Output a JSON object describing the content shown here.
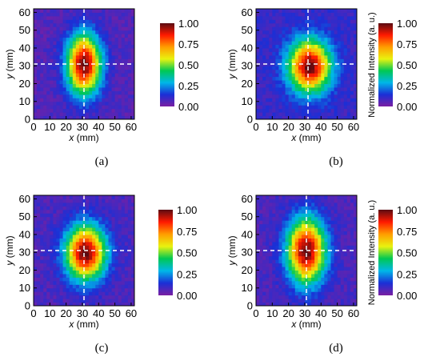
{
  "chart_data": [
    {
      "type": "heatmap",
      "panel_label": "(a)",
      "xlabel": "x (mm)",
      "ylabel": "y (mm)",
      "xlim": [
        0,
        62
      ],
      "ylim": [
        0,
        62
      ],
      "xticks": [
        "0",
        "10",
        "20",
        "30",
        "40",
        "50",
        "60"
      ],
      "yticks": [
        "0",
        "10",
        "20",
        "30",
        "40",
        "50",
        "60"
      ],
      "crosshair": {
        "x": 31,
        "y": 31
      },
      "beam": {
        "center_x": 31,
        "center_y": 31,
        "sigma_x": 9.0,
        "sigma_y": 14.5,
        "peak": 1.0,
        "background": 0.06
      },
      "colorbar": {
        "range": [
          0.0,
          1.0
        ],
        "ticks": [
          "0.00",
          "0.25",
          "0.50",
          "0.75",
          "1.00"
        ],
        "label": ""
      }
    },
    {
      "type": "heatmap",
      "panel_label": "(b)",
      "xlabel": "x (mm)",
      "ylabel": "y (mm)",
      "xlim": [
        0,
        62
      ],
      "ylim": [
        0,
        62
      ],
      "xticks": [
        "0",
        "10",
        "20",
        "30",
        "40",
        "50",
        "60"
      ],
      "yticks": [
        "0",
        "10",
        "20",
        "30",
        "40",
        "50",
        "60"
      ],
      "crosshair": {
        "x": 32,
        "y": 31
      },
      "beam": {
        "center_x": 33,
        "center_y": 30,
        "sigma_x": 11.0,
        "sigma_y": 12.5,
        "peak": 1.0,
        "background": 0.1
      },
      "colorbar": {
        "range": [
          0.0,
          1.0
        ],
        "ticks": [
          "0.00",
          "0.25",
          "0.50",
          "0.75",
          "1.00"
        ],
        "label": "Normalized Intensity (a. u.)"
      }
    },
    {
      "type": "heatmap",
      "panel_label": "(c)",
      "xlabel": "x (mm)",
      "ylabel": "y (mm)",
      "xlim": [
        0,
        62
      ],
      "ylim": [
        0,
        62
      ],
      "xticks": [
        "0",
        "10",
        "20",
        "30",
        "40",
        "50",
        "60"
      ],
      "yticks": [
        "0",
        "10",
        "20",
        "30",
        "40",
        "50",
        "60"
      ],
      "crosshair": {
        "x": 31,
        "y": 31
      },
      "beam": {
        "center_x": 32,
        "center_y": 30,
        "sigma_x": 10.5,
        "sigma_y": 13.0,
        "peak": 1.0,
        "background": 0.07
      },
      "colorbar": {
        "range": [
          0.0,
          1.0
        ],
        "ticks": [
          "0.00",
          "0.25",
          "0.50",
          "0.75",
          "1.00"
        ],
        "label": ""
      }
    },
    {
      "type": "heatmap",
      "panel_label": "(d)",
      "xlabel": "x (mm)",
      "ylabel": "y (mm)",
      "xlim": [
        0,
        62
      ],
      "ylim": [
        0,
        62
      ],
      "xticks": [
        "0",
        "10",
        "20",
        "30",
        "40",
        "50",
        "60"
      ],
      "yticks": [
        "0",
        "10",
        "20",
        "30",
        "40",
        "50",
        "60"
      ],
      "crosshair": {
        "x": 31,
        "y": 31
      },
      "beam": {
        "center_x": 31,
        "center_y": 31,
        "sigma_x": 10.0,
        "sigma_y": 15.5,
        "peak": 1.0,
        "background": 0.07
      },
      "colorbar": {
        "range": [
          0.0,
          1.0
        ],
        "ticks": [
          "0.00",
          "0.25",
          "0.50",
          "0.75",
          "1.00"
        ],
        "label": "Normalized Intensity (a. u.)"
      }
    }
  ],
  "colors": {
    "colormap": [
      "#7a1fa2",
      "#1b2fd6",
      "#00b7e8",
      "#00c853",
      "#e9f20f",
      "#ff9d00",
      "#ff1a00",
      "#5a0b12"
    ],
    "crosshair": "#ffffff",
    "axis": "#000000"
  }
}
